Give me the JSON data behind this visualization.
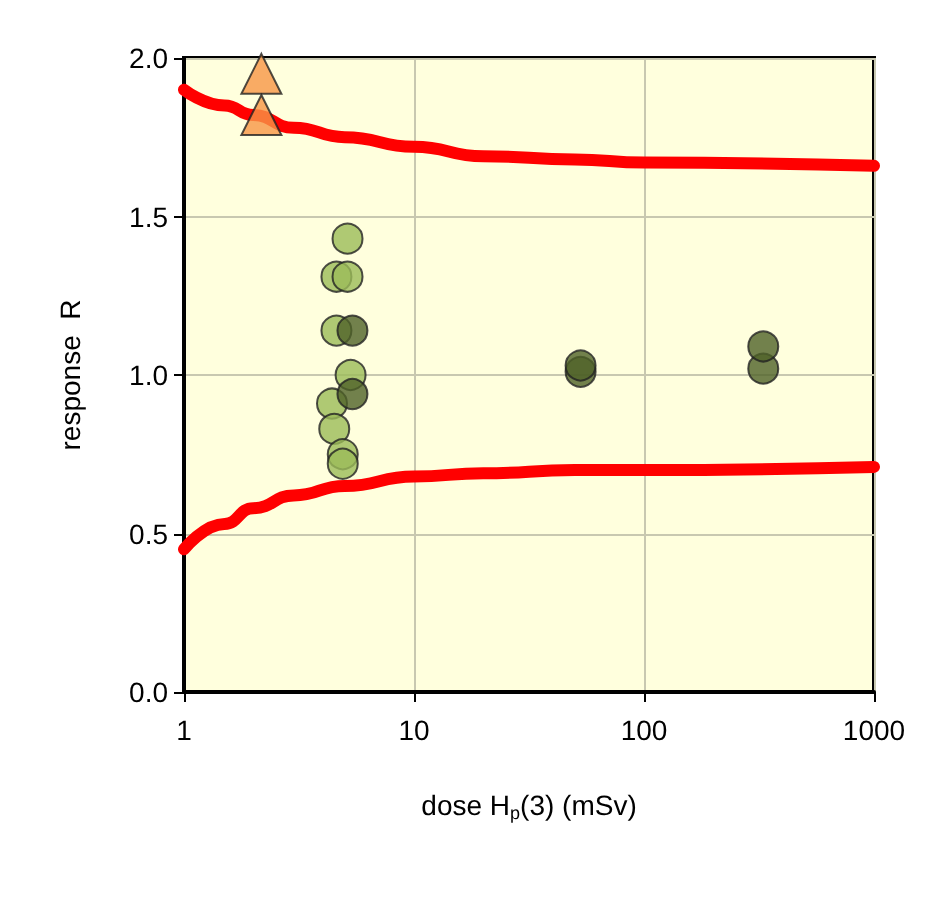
{
  "chart_data": {
    "type": "scatter",
    "xlabel": "dose H$_{p}$(3) (mSv)",
    "ylabel": "response  R",
    "log": "x",
    "grid": true,
    "xlim": [
      1,
      1000
    ],
    "xticks": [
      1,
      10,
      100,
      1000
    ],
    "ylim": [
      0,
      2
    ],
    "yticks": [
      {
        "value": 0,
        "label": "0.0"
      },
      {
        "value": 0.5,
        "label": "0.5"
      },
      {
        "value": 1,
        "label": "1.0"
      },
      {
        "value": 1.5,
        "label": "1.5"
      },
      {
        "value": 2,
        "label": "2.0"
      }
    ],
    "series": [
      {
        "type": "line",
        "color": "#ff0000",
        "marker": "none",
        "line_style": "solid",
        "x": [
          1,
          1.5,
          2,
          3,
          5,
          10,
          20,
          50,
          100,
          1000
        ],
        "values": [
          1.9,
          1.85,
          1.82,
          1.78,
          1.75,
          1.72,
          1.69,
          1.68,
          1.67,
          1.66
        ]
      },
      {
        "type": "line",
        "color": "#ff0000",
        "marker": "none",
        "line_style": "solid",
        "x": [
          1,
          1.5,
          2,
          3,
          5,
          10,
          20,
          50,
          100,
          1000
        ],
        "values": [
          0.45,
          0.53,
          0.58,
          0.62,
          0.65,
          0.68,
          0.69,
          0.7,
          0.7,
          0.71
        ]
      },
      {
        "color": "#f79646",
        "marker": "triangle",
        "x": [
          2.17,
          2.17
        ],
        "values": [
          1.95,
          1.82
        ]
      },
      {
        "color": "#9bbb59",
        "marker": "circle",
        "x": [
          4.6,
          4.6,
          4.4,
          4.5,
          4.9,
          4.9,
          5.3
        ],
        "values": [
          1.31,
          1.14,
          0.91,
          0.83,
          0.75,
          0.72,
          1.0
        ]
      },
      {
        "color": "#9bbb59",
        "marker": "circle",
        "x": [
          5.14,
          5.14
        ],
        "values": [
          1.43,
          1.31
        ]
      },
      {
        "color": "#4f6228",
        "marker": "circle",
        "x": [
          5.4,
          5.4,
          53,
          53,
          330,
          330
        ],
        "values": [
          1.14,
          0.94,
          1.01,
          1.03,
          1.02,
          1.09
        ]
      }
    ]
  }
}
